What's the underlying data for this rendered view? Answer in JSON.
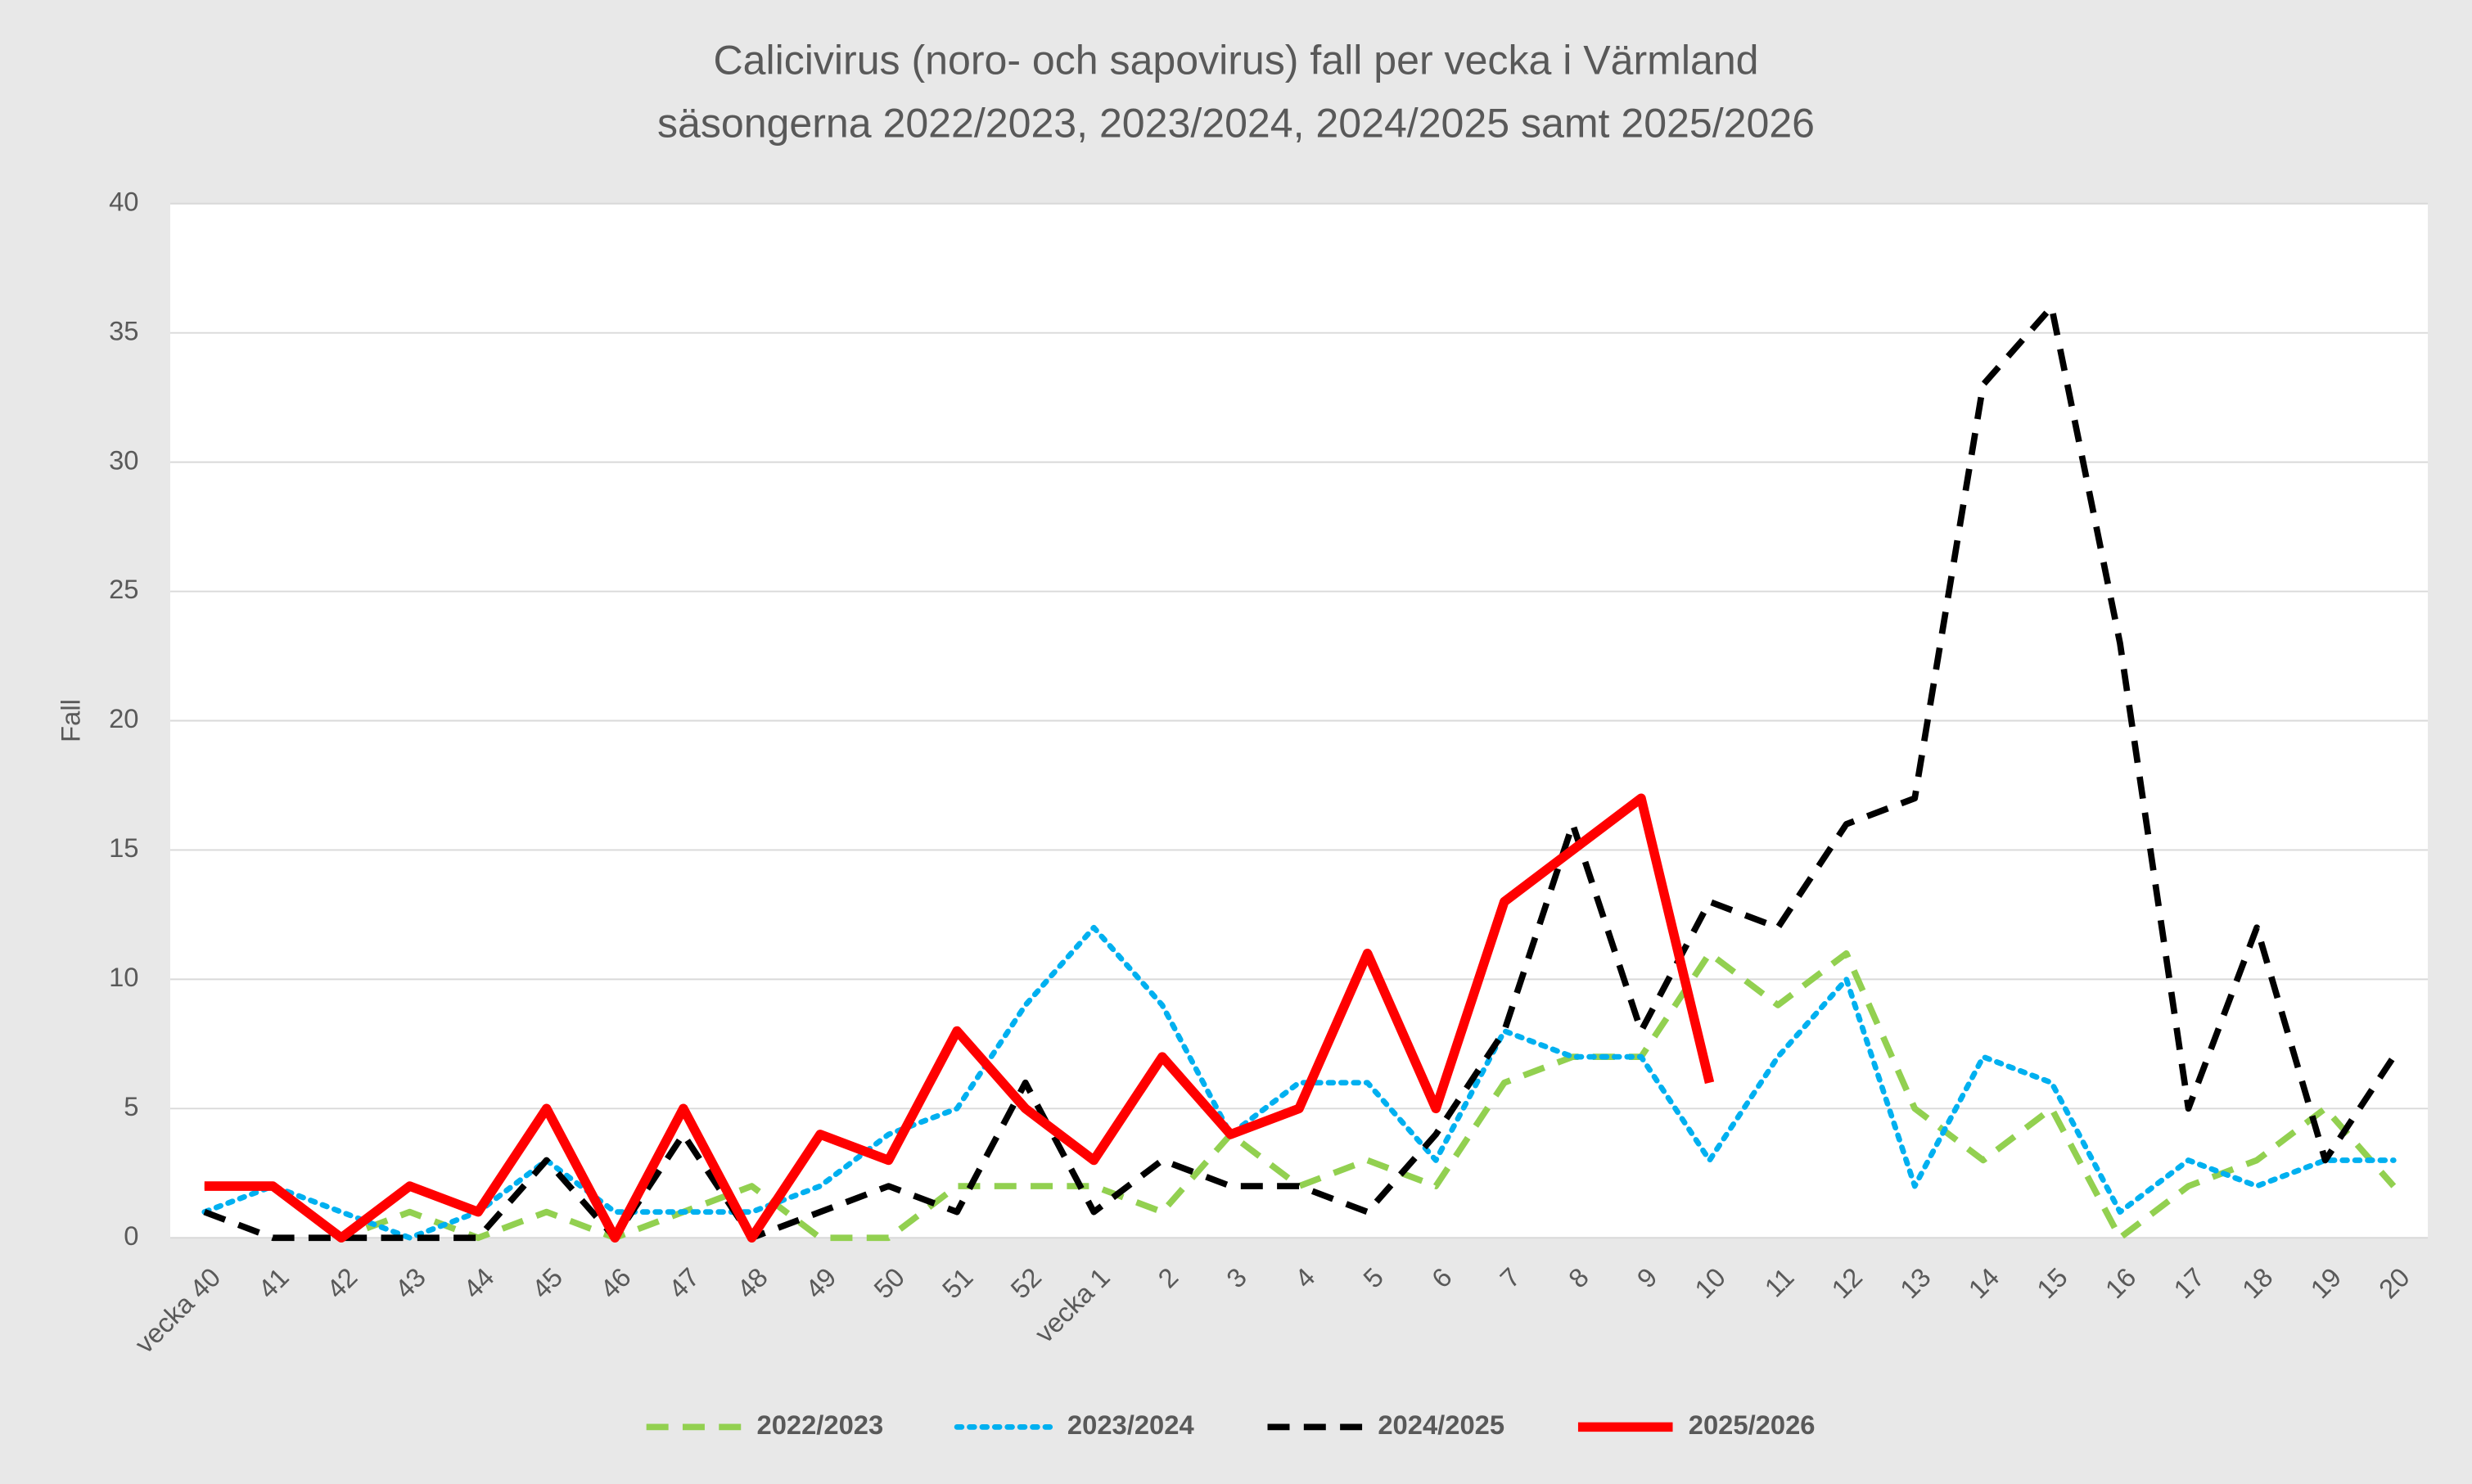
{
  "chart_data": {
    "type": "line",
    "title": "Calicivirus (noro- och sapovirus) fall per vecka i Värmland",
    "subtitle": "säsongerna 2022/2023, 2023/2024, 2024/2025 samt 2025/2026",
    "y_label": "Fall",
    "categories": [
      "vecka 40",
      "41",
      "42",
      "43",
      "44",
      "45",
      "46",
      "47",
      "48",
      "49",
      "50",
      "51",
      "52",
      "vecka 1",
      "2",
      "3",
      "4",
      "5",
      "6",
      "7",
      "8",
      "9",
      "10",
      "11",
      "12",
      "13",
      "14",
      "15",
      "16",
      "17",
      "18",
      "19",
      "20"
    ],
    "series": [
      {
        "name": "2022/2023",
        "color": "#92d050",
        "line_style": "dashed",
        "values": [
          2,
          2,
          0,
          1,
          0,
          1,
          0,
          1,
          2,
          0,
          0,
          2,
          2,
          2,
          1,
          4,
          2,
          3,
          2,
          6,
          7,
          7,
          11,
          9,
          11,
          5,
          3,
          5,
          0,
          2,
          3,
          5,
          2
        ]
      },
      {
        "name": "2023/2024",
        "color": "#00b0f0",
        "line_style": "dotted",
        "values": [
          1,
          2,
          1,
          0,
          1,
          3,
          1,
          1,
          1,
          2,
          4,
          5,
          9,
          12,
          9,
          4,
          6,
          6,
          3,
          8,
          7,
          7,
          3,
          7,
          10,
          2,
          7,
          6,
          1,
          3,
          2,
          3,
          3
        ]
      },
      {
        "name": "2024/2025",
        "color": "#000000",
        "line_style": "dashed",
        "values": [
          1,
          0,
          0,
          0,
          0,
          3,
          0,
          4,
          0,
          1,
          2,
          1,
          6,
          1,
          3,
          2,
          2,
          1,
          4,
          8,
          16,
          8,
          13,
          12,
          16,
          17,
          33,
          36,
          23,
          5,
          12,
          3,
          7
        ]
      },
      {
        "name": "2025/2026",
        "color": "#ff0000",
        "line_style": "solid",
        "values": [
          2,
          2,
          0,
          2,
          1,
          5,
          0,
          5,
          0,
          4,
          3,
          8,
          5,
          3,
          7,
          4,
          5,
          11,
          5,
          13,
          15,
          17,
          6,
          null,
          null,
          null,
          null,
          null,
          null,
          null,
          null,
          null,
          null
        ]
      }
    ],
    "ylim": [
      0,
      40
    ],
    "yticks": [
      0,
      5,
      10,
      15,
      20,
      25,
      30,
      35,
      40
    ],
    "grid": true,
    "legend": "bottom"
  }
}
